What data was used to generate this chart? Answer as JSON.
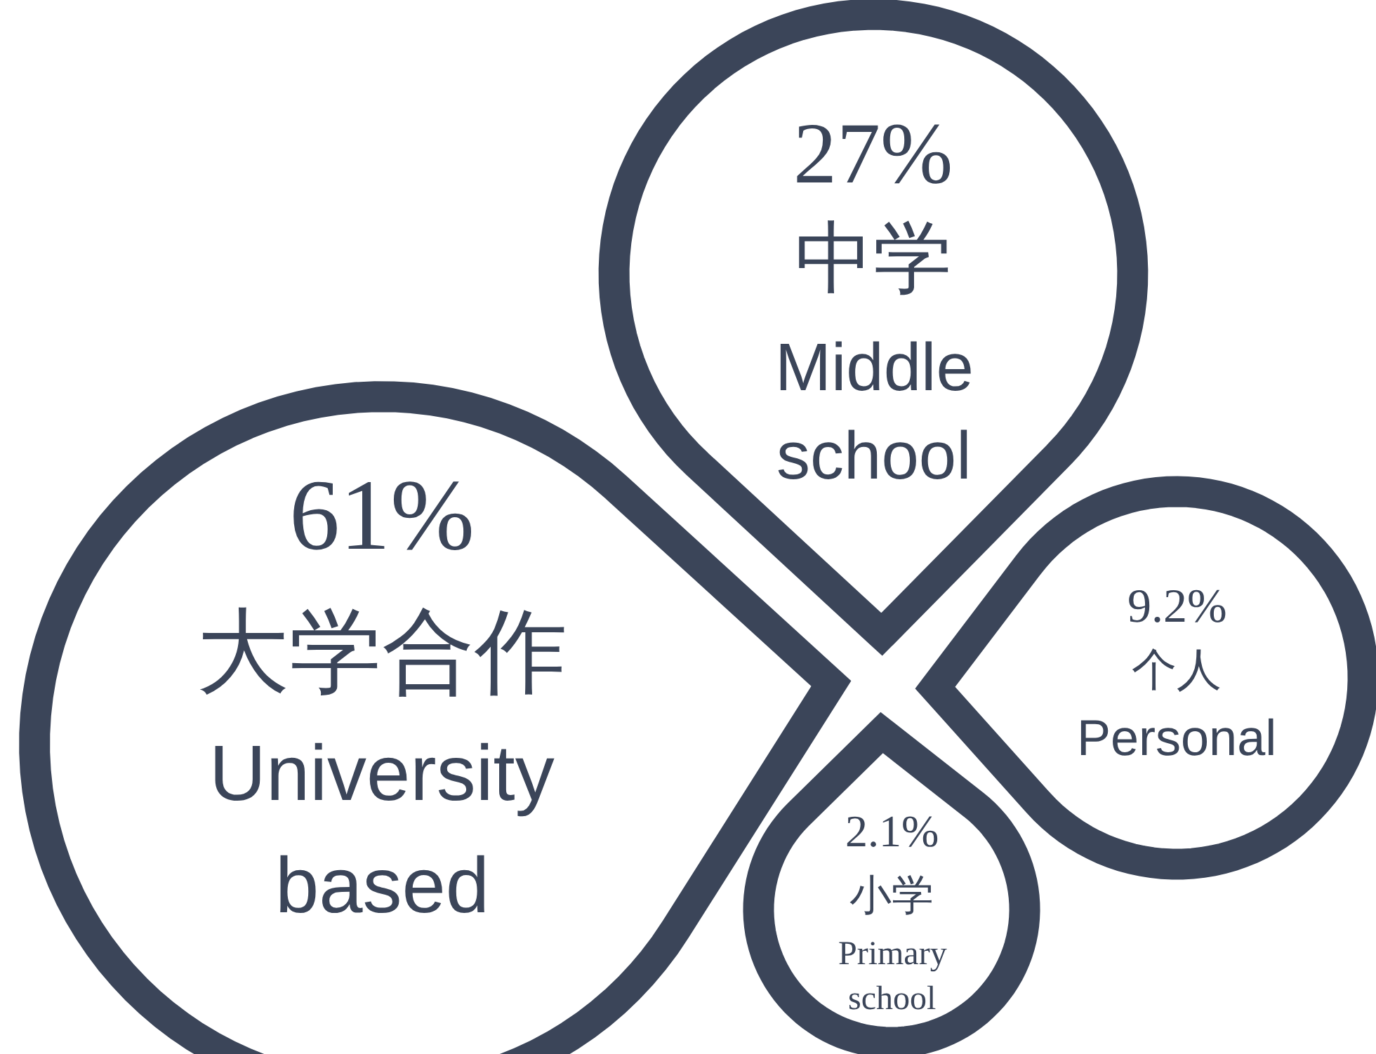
{
  "chart_data": {
    "type": "other",
    "categories": [
      "大学合作\nUniversity\nbased",
      "中学\nMiddle\nschool",
      "个人\nPersonal",
      "小学\nPrimary\nschool"
    ],
    "values": [
      61,
      27,
      9.2,
      2.1
    ],
    "value_labels": [
      "61%",
      "27%",
      "9.2%",
      "2.1%"
    ],
    "color": "#3b4559"
  }
}
